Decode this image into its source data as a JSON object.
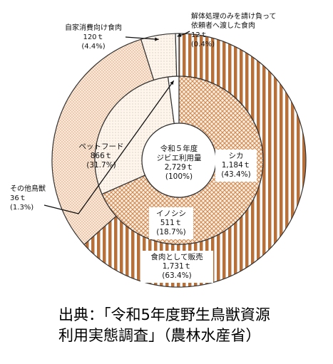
{
  "chart_data": {
    "type": "pie",
    "variant": "nested-donut",
    "title": "",
    "center_label": [
      "令和５年度",
      "ジビエ利用量",
      "2,729ｔ",
      "(100%)"
    ],
    "outer_ring": [
      {
        "category": "食肉として販売",
        "value": 1731,
        "unit": "ｔ",
        "percent": 63.4,
        "label": [
          "食肉として販売",
          "1,731ｔ",
          "(63.4%)"
        ],
        "pattern": "vertical-stripes",
        "color": "#b8703a"
      },
      {
        "category": "ペットフード",
        "value": 866,
        "unit": "ｔ",
        "percent": 31.7,
        "label": [
          "ペットフード",
          "866ｔ",
          "(31.7%)"
        ],
        "pattern": "fine-dots",
        "color": "#f3d8bd"
      },
      {
        "category": "自家消費向け食肉",
        "value": 120,
        "unit": "ｔ",
        "percent": 4.4,
        "label": [
          "自家消費向け食肉",
          "120ｔ",
          "(4.4%)"
        ],
        "pattern": "light-dots",
        "color": "#f8ece0"
      },
      {
        "category": "解体処理のみを請け負って依頼者へ渡した食肉",
        "value": 12,
        "unit": "ｔ",
        "percent": 0.4,
        "label": [
          "解体処理のみを請け負って",
          "依頼者へ渡した食肉",
          "12ｔ",
          "(0.4%)"
        ],
        "pattern": "white",
        "color": "#ffffff"
      }
    ],
    "inner_ring": [
      {
        "category": "シカ",
        "value": 1184,
        "unit": "ｔ",
        "percent": 43.4,
        "label": [
          "シカ",
          "1,184ｔ",
          "(43.4%)"
        ],
        "pattern": "crosshatch",
        "color": "#d9955e"
      },
      {
        "category": "イノシシ",
        "value": 511,
        "unit": "ｔ",
        "percent": 18.7,
        "label": [
          "イノシシ",
          "511ｔ",
          "(18.7%)"
        ],
        "pattern": "light-dots",
        "color": "#f3dcc4"
      },
      {
        "category": "その他鳥獣",
        "value": 36,
        "unit": "ｔ",
        "percent": 1.3,
        "label": [
          "その他鳥獣",
          "36ｔ",
          "(1.3%)"
        ],
        "pattern": "white",
        "color": "#ffffff"
      }
    ]
  },
  "source_lines": [
    "出典：「令和5年度野生鳥獣資源",
    "利用実態調査」（農林水産省）"
  ]
}
